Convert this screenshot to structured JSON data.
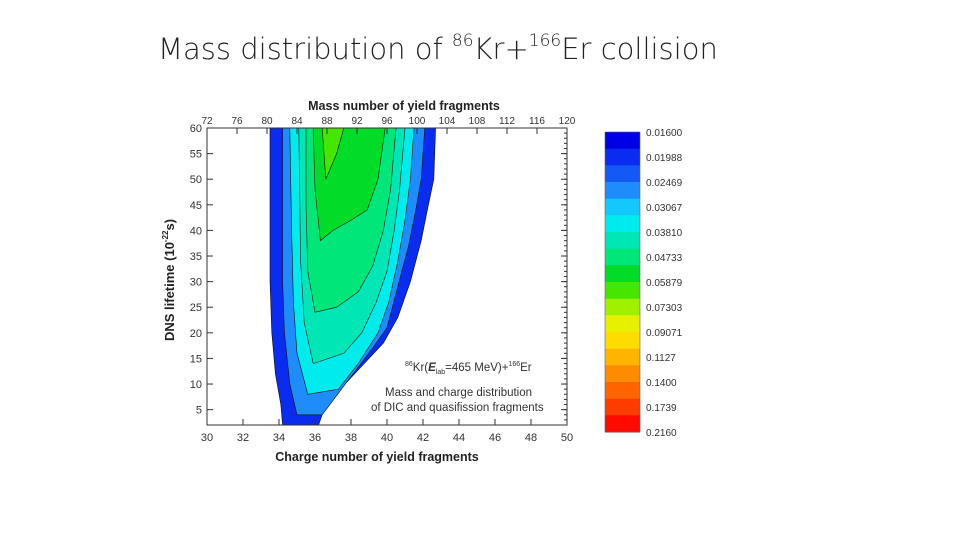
{
  "slide": {
    "title_pre": "Mass distribution of ",
    "sup1": "86",
    "mid": "Kr+",
    "sup2": "166",
    "post": "Er collision"
  },
  "chart_data": {
    "type": "heatmap",
    "top_axis": {
      "label": "Mass number of yield fragments",
      "ticks": [
        72,
        76,
        80,
        84,
        88,
        92,
        96,
        100,
        104,
        108,
        112,
        116,
        120
      ],
      "range": [
        72,
        120
      ]
    },
    "x_axis": {
      "label": "Charge number of yield fragments",
      "ticks": [
        30,
        32,
        34,
        36,
        38,
        40,
        42,
        44,
        46,
        48,
        50
      ],
      "range": [
        30,
        50
      ]
    },
    "y_axis": {
      "label_main": "DNS lifetime (10",
      "label_exp": "-22",
      "label_unit": "s)",
      "ticks": [
        5,
        10,
        15,
        20,
        25,
        30,
        35,
        40,
        45,
        50,
        55,
        60
      ],
      "range": [
        2,
        60
      ]
    },
    "annotation": {
      "reaction_sup1": "86",
      "reaction_a": "Kr(",
      "reaction_E": "E",
      "reaction_sub": "lab",
      "reaction_b": "=465 MeV)+",
      "reaction_sup2": "166",
      "reaction_c": "Er",
      "line1": "Mass and charge distribution",
      "line2": "of DIC and quasifission fragments"
    },
    "colorbar": {
      "labels": [
        "0.01600",
        "0.01988",
        "0.02469",
        "0.03067",
        "0.03810",
        "0.04733",
        "0.05879",
        "0.07303",
        "0.09071",
        "0.1127",
        "0.1400",
        "0.1739",
        "0.2160"
      ],
      "colors": [
        "#0000e6",
        "#0a2bf0",
        "#1458f5",
        "#1e8cfa",
        "#12c8fc",
        "#00ecec",
        "#00e6b4",
        "#00e678",
        "#00dc28",
        "#46e600",
        "#a0f000",
        "#e6f000",
        "#ffdc00",
        "#ffb400",
        "#ff8c00",
        "#ff6400",
        "#ff3c00",
        "#ff0a00"
      ]
    },
    "contour_levels": [
      {
        "color": "#0a2bf0",
        "left": [
          [
            34.2,
            2
          ],
          [
            34.1,
            6
          ],
          [
            33.8,
            12
          ],
          [
            33.6,
            20
          ],
          [
            33.5,
            30
          ],
          [
            33.5,
            40
          ],
          [
            33.5,
            50
          ],
          [
            33.5,
            60
          ]
        ],
        "right": [
          [
            42.7,
            60
          ],
          [
            42.6,
            50
          ],
          [
            42.3,
            45
          ],
          [
            41.9,
            38
          ],
          [
            41.3,
            30
          ],
          [
            40.6,
            23
          ],
          [
            39.8,
            18
          ],
          [
            38.2,
            12
          ],
          [
            36.6,
            6
          ],
          [
            36.2,
            2
          ]
        ]
      },
      {
        "color": "#1e8cfa",
        "left": [
          [
            35.0,
            4
          ],
          [
            34.6,
            10
          ],
          [
            34.3,
            20
          ],
          [
            34.2,
            30
          ],
          [
            34.2,
            45
          ],
          [
            34.2,
            60
          ]
        ],
        "right": [
          [
            42.1,
            60
          ],
          [
            41.9,
            50
          ],
          [
            41.6,
            44
          ],
          [
            41.2,
            37
          ],
          [
            40.6,
            29
          ],
          [
            40.0,
            21
          ],
          [
            39.2,
            17
          ],
          [
            37.9,
            11
          ],
          [
            36.4,
            4
          ]
        ]
      },
      {
        "color": "#00ecec",
        "left": [
          [
            35.6,
            8
          ],
          [
            35.0,
            16
          ],
          [
            34.8,
            26
          ],
          [
            34.7,
            40
          ],
          [
            34.6,
            60
          ]
        ],
        "right": [
          [
            41.5,
            60
          ],
          [
            41.3,
            50
          ],
          [
            41.0,
            42
          ],
          [
            40.6,
            34
          ],
          [
            40.1,
            26
          ],
          [
            39.5,
            20
          ],
          [
            38.4,
            14
          ],
          [
            37.3,
            9
          ]
        ]
      },
      {
        "color": "#00e6b4",
        "left": [
          [
            35.9,
            14
          ],
          [
            35.4,
            22
          ],
          [
            35.2,
            34
          ],
          [
            35.1,
            60
          ]
        ],
        "right": [
          [
            41.0,
            60
          ],
          [
            40.7,
            48
          ],
          [
            40.4,
            40
          ],
          [
            40.0,
            32
          ],
          [
            39.4,
            26
          ],
          [
            38.6,
            20
          ],
          [
            37.6,
            16
          ]
        ]
      },
      {
        "color": "#00e678",
        "left": [
          [
            36.0,
            24
          ],
          [
            35.6,
            32
          ],
          [
            35.5,
            45
          ],
          [
            35.5,
            60
          ]
        ],
        "right": [
          [
            40.5,
            60
          ],
          [
            40.2,
            48
          ],
          [
            39.8,
            40
          ],
          [
            39.2,
            33
          ],
          [
            38.4,
            28
          ],
          [
            37.2,
            25
          ]
        ]
      },
      {
        "color": "#00dc28",
        "left": [
          [
            36.3,
            38
          ],
          [
            36.0,
            48
          ],
          [
            35.9,
            60
          ]
        ],
        "right": [
          [
            39.9,
            60
          ],
          [
            39.5,
            50
          ],
          [
            38.9,
            44
          ],
          [
            38.0,
            42
          ],
          [
            37.0,
            40
          ]
        ]
      },
      {
        "color": "#46e600",
        "left": [
          [
            36.6,
            50
          ],
          [
            36.4,
            60
          ]
        ],
        "right": [
          [
            37.6,
            60
          ],
          [
            37.2,
            55
          ]
        ]
      }
    ]
  }
}
